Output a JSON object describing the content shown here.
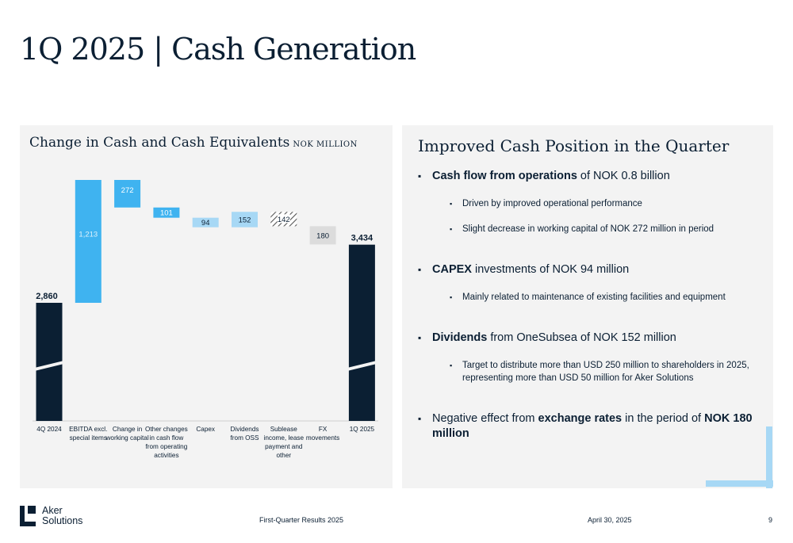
{
  "page": {
    "title": "1Q 2025 | Cash Generation"
  },
  "left_panel": {
    "title": "Change in Cash and Cash Equivalents",
    "unit": "NOK MILLION"
  },
  "chart_data": {
    "type": "bar",
    "subtype": "waterfall",
    "categories": [
      "4Q 2024",
      "EBITDA excl. special items",
      "Change in working capital",
      "Other changes in cash flow from operating activities",
      "Capex",
      "Dividends from OSS",
      "Sublease income, lease payment and other",
      "FX movements",
      "1Q 2025"
    ],
    "category_lines": [
      [
        "4Q 2024"
      ],
      [
        "EBITDA excl.",
        "special items"
      ],
      [
        "Change in",
        "working capital"
      ],
      [
        "Other changes",
        "in cash flow",
        "from operating",
        "activities"
      ],
      [
        "Capex"
      ],
      [
        "Dividends",
        "from OSS"
      ],
      [
        "Sublease",
        "income, lease",
        "payment and",
        "other"
      ],
      [
        "FX",
        "movements"
      ],
      [
        "1Q 2025"
      ]
    ],
    "values": [
      2860,
      1213,
      -272,
      -101,
      -94,
      152,
      -142,
      -180,
      3434
    ],
    "labels": [
      "2,860",
      "1,213",
      "272",
      "101",
      "94",
      "152",
      "142",
      "180",
      "3,434"
    ],
    "kinds": [
      "total",
      "increase",
      "decrease",
      "decrease",
      "decrease",
      "increase",
      "decrease",
      "decrease",
      "total"
    ],
    "axis_break": true,
    "colors": {
      "total": "#0b1f33",
      "flow_dark": "#3fb3f0",
      "flow_light": "#a7d8f5",
      "fx": "#dcdcdc",
      "hatch": "#555555"
    }
  },
  "right_panel": {
    "title": "Improved Cash Position in the Quarter",
    "b1": {
      "bold": "Cash flow from operations",
      "rest": " of NOK 0.8 billion"
    },
    "b1_sub1": "Driven by improved operational performance",
    "b1_sub2": "Slight decrease in working capital of NOK 272 million in period",
    "b2": {
      "bold": "CAPEX",
      "rest": " investments of NOK 94 million"
    },
    "b2_sub1": "Mainly related to maintenance of existing facilities and equipment",
    "b3": {
      "bold": "Dividends",
      "rest": " from OneSubsea of NOK 152 million"
    },
    "b3_sub1": "Target to distribute more than USD 250 million to shareholders in 2025, representing more than USD 50 million for Aker Solutions",
    "b4": {
      "pre": "Negative effect from ",
      "bold1": "exchange rates",
      "mid": " in the period of ",
      "bold2": "NOK 180 million"
    }
  },
  "footer": {
    "logo_line1": "Aker",
    "logo_line2": "Solutions",
    "center": "First-Quarter Results 2025",
    "date": "April 30, 2025",
    "page_number": "9"
  }
}
